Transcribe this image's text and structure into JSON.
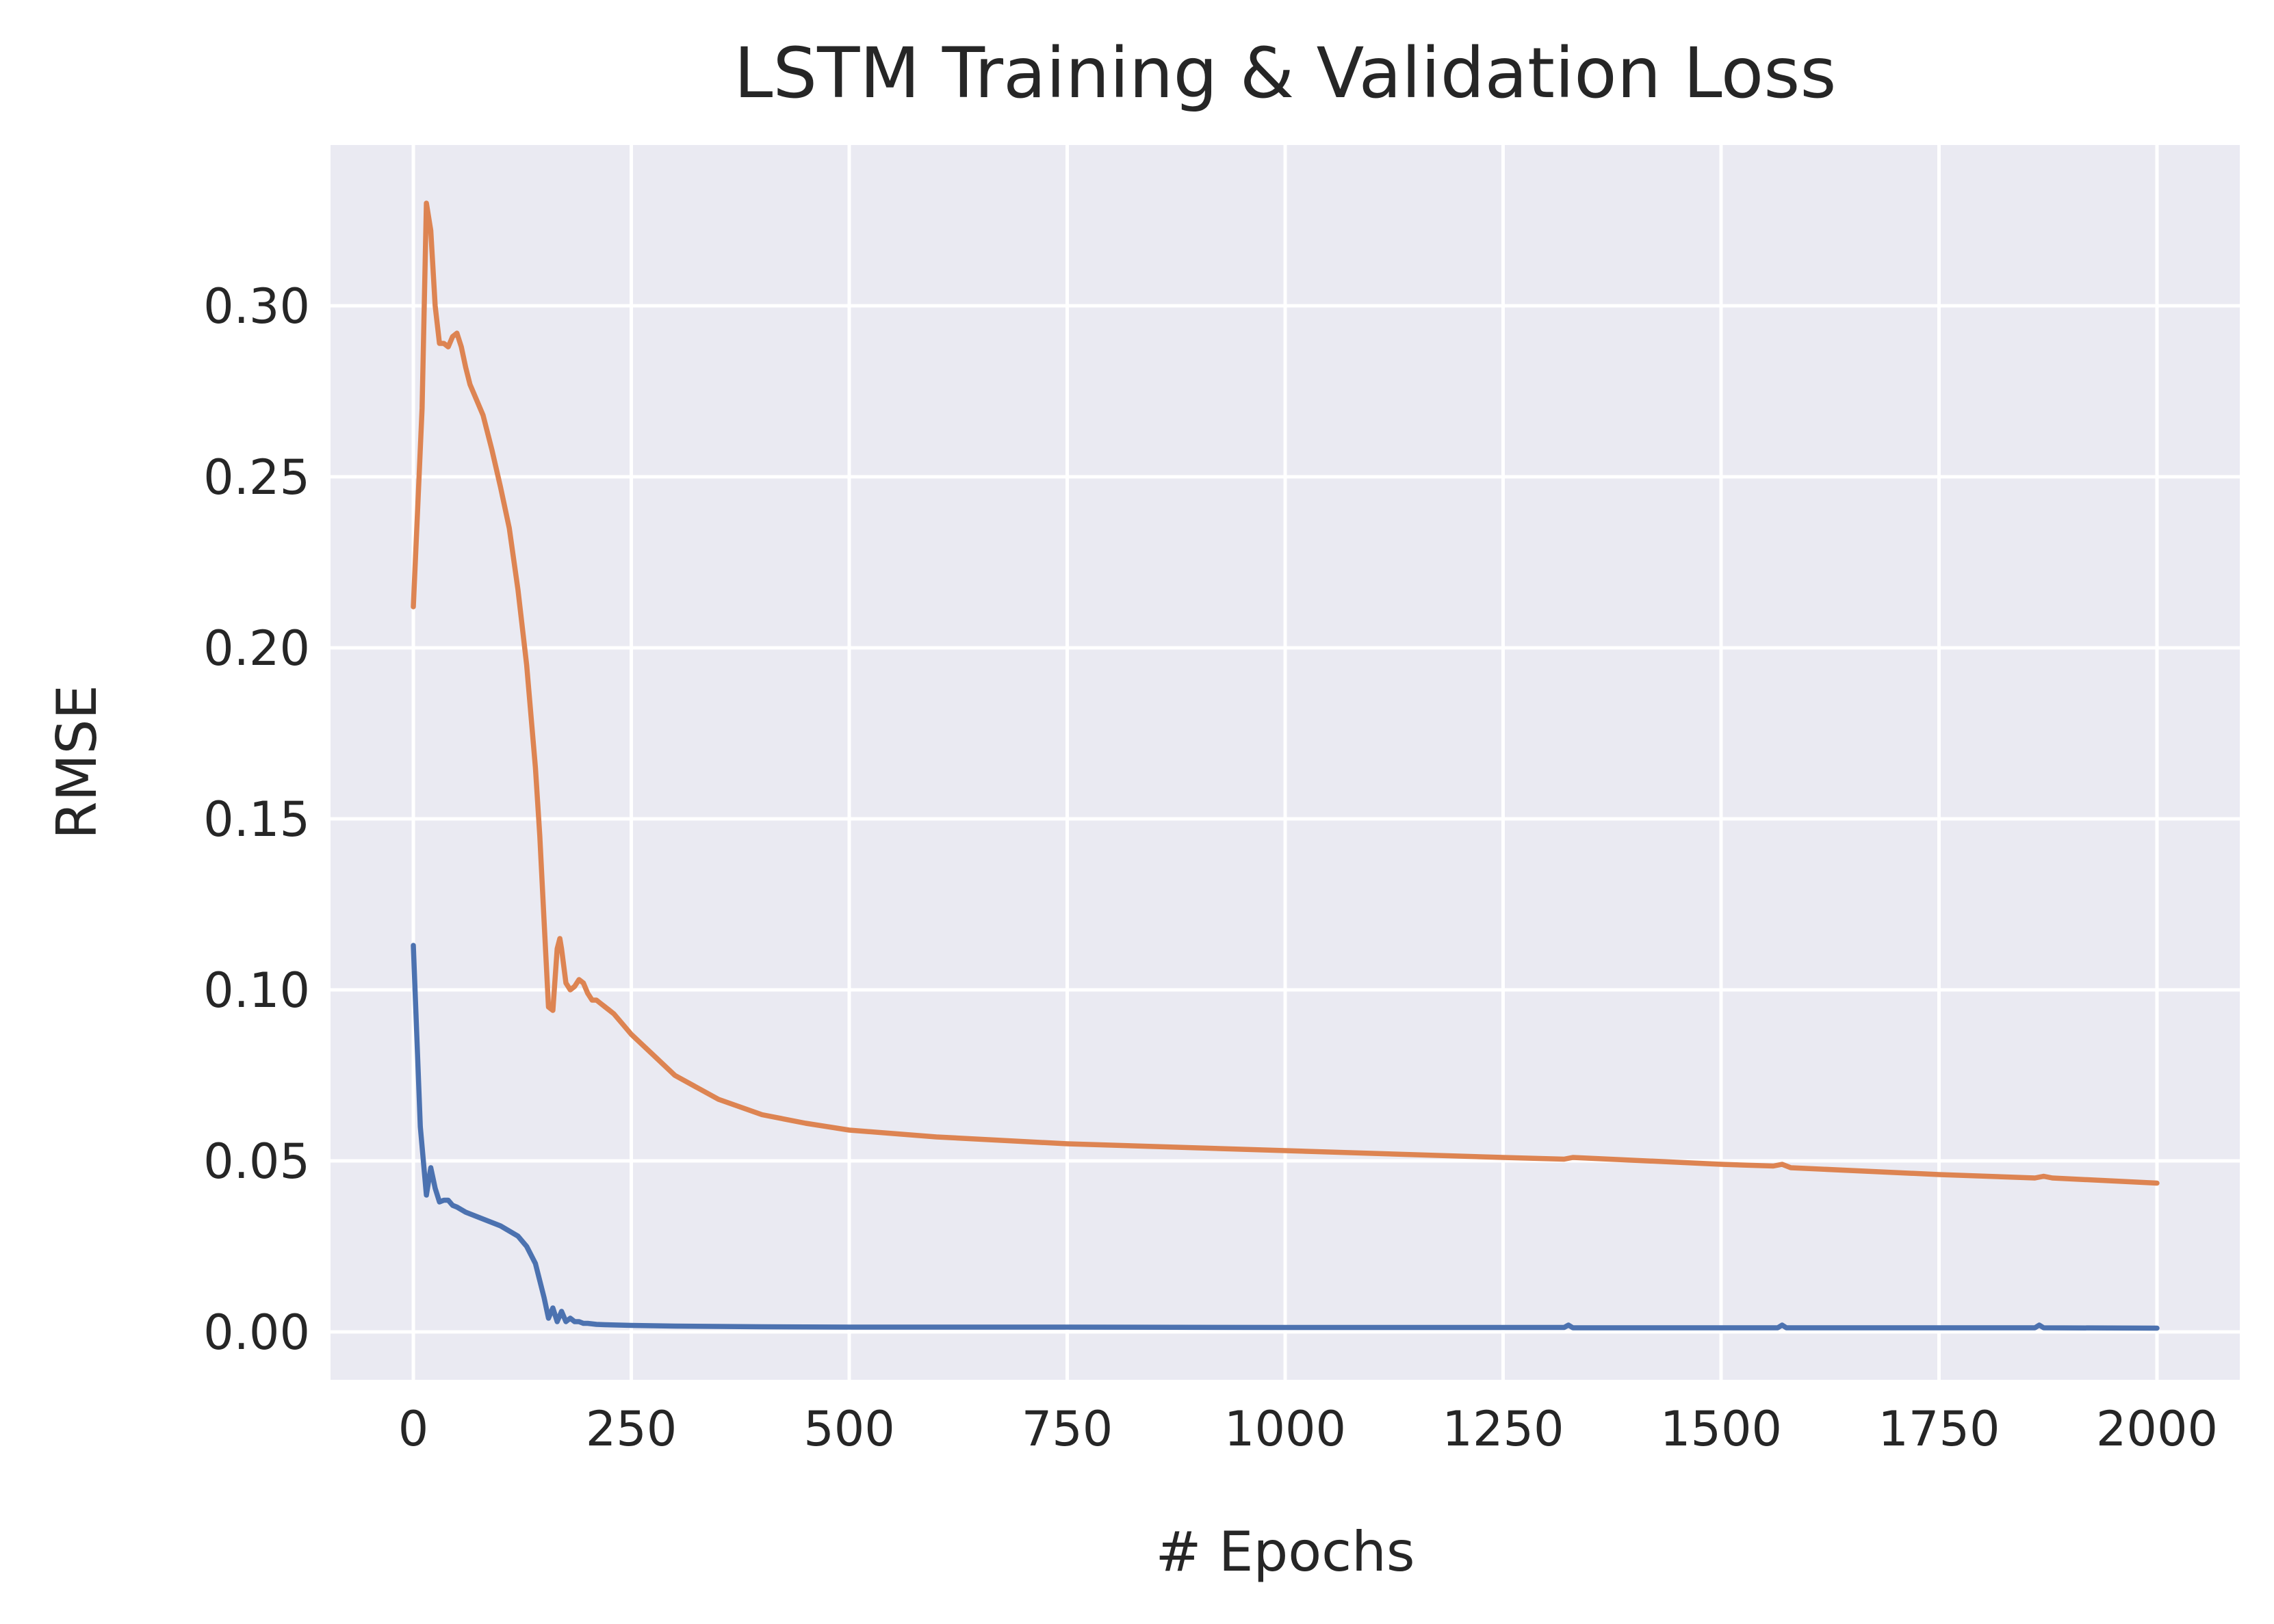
{
  "chart_data": {
    "type": "line",
    "title": "LSTM Training & Validation Loss",
    "xlabel": "# Epochs",
    "ylabel": "RMSE",
    "xlim": [
      -95,
      2095
    ],
    "ylim": [
      -0.014,
      0.347
    ],
    "xticks": [
      0,
      250,
      500,
      750,
      1000,
      1250,
      1500,
      1750,
      2000
    ],
    "yticks": [
      0.0,
      0.05,
      0.1,
      0.15,
      0.2,
      0.25,
      0.3
    ],
    "ytick_labels": [
      "0.00",
      "0.05",
      "0.10",
      "0.15",
      "0.20",
      "0.25",
      "0.30"
    ],
    "grid": true,
    "series": [
      {
        "color": "#4c72b0",
        "x": [
          0,
          8,
          15,
          20,
          25,
          30,
          35,
          40,
          45,
          50,
          60,
          80,
          100,
          120,
          130,
          140,
          150,
          155,
          160,
          165,
          170,
          175,
          180,
          185,
          190,
          195,
          200,
          210,
          220,
          250,
          300,
          400,
          500,
          750,
          1000,
          1250,
          1320,
          1325,
          1330,
          1500,
          1565,
          1570,
          1575,
          1750,
          1860,
          1865,
          1870,
          2000
        ],
        "y": [
          0.113,
          0.06,
          0.04,
          0.048,
          0.042,
          0.038,
          0.0385,
          0.0385,
          0.037,
          0.0365,
          0.035,
          0.033,
          0.031,
          0.028,
          0.025,
          0.02,
          0.01,
          0.004,
          0.007,
          0.003,
          0.006,
          0.003,
          0.004,
          0.003,
          0.003,
          0.0025,
          0.0025,
          0.0022,
          0.0021,
          0.0019,
          0.0017,
          0.0015,
          0.0014,
          0.0014,
          0.0013,
          0.0013,
          0.0013,
          0.002,
          0.0012,
          0.0012,
          0.0012,
          0.002,
          0.0012,
          0.0012,
          0.0012,
          0.002,
          0.0012,
          0.0011
        ]
      },
      {
        "color": "#dd8452",
        "x": [
          0,
          10,
          15,
          20,
          25,
          30,
          35,
          40,
          45,
          50,
          55,
          60,
          65,
          70,
          80,
          90,
          100,
          110,
          120,
          130,
          140,
          145,
          150,
          155,
          160,
          165,
          168,
          170,
          175,
          180,
          185,
          190,
          195,
          200,
          205,
          210,
          215,
          220,
          225,
          230,
          240,
          250,
          275,
          300,
          350,
          400,
          450,
          500,
          600,
          750,
          1000,
          1250,
          1320,
          1330,
          1500,
          1560,
          1570,
          1580,
          1750,
          1860,
          1870,
          1880,
          2000
        ],
        "y": [
          0.212,
          0.27,
          0.33,
          0.322,
          0.3,
          0.289,
          0.289,
          0.288,
          0.291,
          0.292,
          0.288,
          0.282,
          0.277,
          0.274,
          0.268,
          0.258,
          0.247,
          0.235,
          0.217,
          0.195,
          0.165,
          0.145,
          0.12,
          0.095,
          0.094,
          0.112,
          0.115,
          0.112,
          0.102,
          0.1,
          0.101,
          0.103,
          0.102,
          0.099,
          0.097,
          0.097,
          0.096,
          0.095,
          0.094,
          0.093,
          0.09,
          0.087,
          0.081,
          0.075,
          0.068,
          0.0635,
          0.061,
          0.059,
          0.057,
          0.055,
          0.053,
          0.051,
          0.0505,
          0.051,
          0.049,
          0.0485,
          0.049,
          0.048,
          0.046,
          0.045,
          0.0455,
          0.045,
          0.0435
        ]
      }
    ]
  }
}
